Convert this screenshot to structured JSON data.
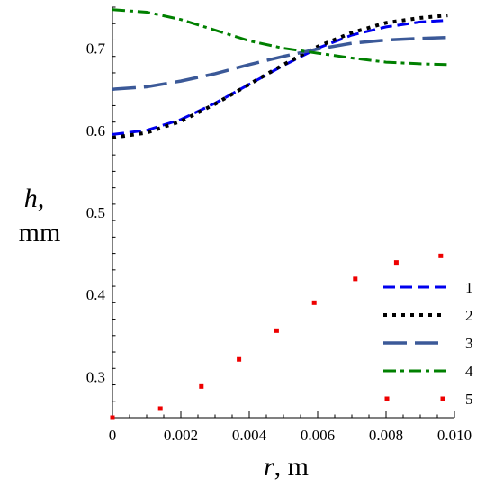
{
  "chart_data": {
    "type": "line",
    "x_label_var": "r",
    "x_label_unit": ", m",
    "y_label_var": "h,",
    "y_label_unit": "mm",
    "xlim": [
      0,
      0.01
    ],
    "ylim": [
      0.25,
      0.75
    ],
    "x_ticks": [
      {
        "value": 0,
        "label": "0"
      },
      {
        "value": 0.002,
        "label": "0.002"
      },
      {
        "value": 0.004,
        "label": "0.004"
      },
      {
        "value": 0.006,
        "label": "0.006"
      },
      {
        "value": 0.008,
        "label": "0.008"
      },
      {
        "value": 0.01,
        "label": "0.010"
      }
    ],
    "y_ticks": [
      {
        "value": 0.3,
        "label": "0.3"
      },
      {
        "value": 0.4,
        "label": "0.4"
      },
      {
        "value": 0.5,
        "label": "0.5"
      },
      {
        "value": 0.6,
        "label": "0.6"
      },
      {
        "value": 0.7,
        "label": "0.7"
      }
    ],
    "legend_position": "right",
    "series": [
      {
        "name": "1",
        "color": "#0000ee",
        "style": "dash",
        "x": [
          0,
          0.001,
          0.002,
          0.003,
          0.004,
          0.005,
          0.006,
          0.007,
          0.008,
          0.009,
          0.0098
        ],
        "y": [
          0.595,
          0.6,
          0.613,
          0.633,
          0.656,
          0.679,
          0.7,
          0.716,
          0.726,
          0.732,
          0.734
        ]
      },
      {
        "name": "2",
        "color": "#000000",
        "style": "dot",
        "x": [
          0,
          0.001,
          0.002,
          0.003,
          0.004,
          0.005,
          0.006,
          0.007,
          0.008,
          0.009,
          0.0098
        ],
        "y": [
          0.591,
          0.597,
          0.611,
          0.632,
          0.656,
          0.68,
          0.702,
          0.719,
          0.731,
          0.737,
          0.74
        ]
      },
      {
        "name": "3",
        "color": "#3b5998",
        "style": "longdash",
        "x": [
          0,
          0.001,
          0.002,
          0.003,
          0.004,
          0.005,
          0.006,
          0.007,
          0.008,
          0.009,
          0.0098
        ],
        "y": [
          0.65,
          0.653,
          0.66,
          0.669,
          0.68,
          0.69,
          0.699,
          0.706,
          0.71,
          0.712,
          0.713
        ]
      },
      {
        "name": "4",
        "color": "#008000",
        "style": "dashdot",
        "x": [
          0,
          0.001,
          0.002,
          0.003,
          0.004,
          0.005,
          0.006,
          0.007,
          0.008,
          0.009,
          0.0098
        ],
        "y": [
          0.747,
          0.744,
          0.735,
          0.722,
          0.709,
          0.7,
          0.694,
          0.688,
          0.683,
          0.681,
          0.68
        ]
      },
      {
        "name": "5",
        "color": "#ee0000",
        "style": "markers",
        "x": [
          0,
          0.0014,
          0.0026,
          0.0037,
          0.0048,
          0.0059,
          0.0071,
          0.0083,
          0.0096
        ],
        "y": [
          0.25,
          0.261,
          0.288,
          0.321,
          0.356,
          0.39,
          0.419,
          0.439,
          0.447
        ]
      }
    ]
  }
}
